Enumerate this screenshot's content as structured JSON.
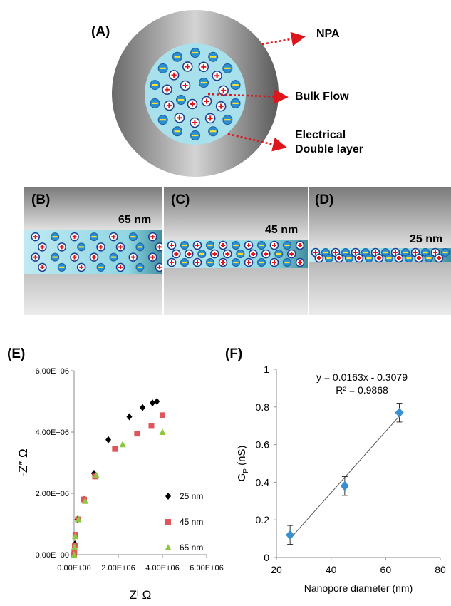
{
  "panelA": {
    "letter": "(A)",
    "labels": {
      "npa": "NPA",
      "bulk": "Bulk Flow",
      "edl_line1": "Electrical",
      "edl_line2": "Double layer"
    },
    "colors": {
      "outer_dark": "#5f5f5f",
      "outer_light": "#d9d9d9",
      "fluid": "#a8e1ec",
      "arrow": "#e0141b"
    }
  },
  "channels": [
    {
      "letter": "(B)",
      "size": "65 nm"
    },
    {
      "letter": "(C)",
      "size": "45 nm"
    },
    {
      "letter": "(D)",
      "size": "25 nm"
    }
  ],
  "chart_data": [
    {
      "panel": "(E)",
      "type": "scatter",
      "xlabel": "Zᴵ Ω",
      "ylabel": "-Z″ Ω",
      "xlim": [
        0,
        6000000
      ],
      "ylim": [
        0,
        6000000
      ],
      "xticks": [
        "0.00E+00",
        "2.00E+06",
        "4.00E+06",
        "6.00E+06"
      ],
      "yticks": [
        "0.00E+00",
        "2.00E+06",
        "4.00E+06",
        "6.00E+06"
      ],
      "legend_position": "right",
      "series": [
        {
          "name": "25 nm",
          "marker": "diamond",
          "color": "#000000",
          "x": [
            0,
            10000,
            20000,
            40000,
            150000,
            450000,
            900000,
            1550000,
            2500000,
            3100000,
            3550000,
            3750000
          ],
          "y": [
            0,
            80000,
            150000,
            350000,
            1150000,
            1800000,
            2650000,
            3750000,
            4500000,
            4800000,
            4950000,
            5000000
          ]
        },
        {
          "name": "45 nm",
          "marker": "square",
          "color": "#e0555a",
          "x": [
            0,
            10000,
            30000,
            60000,
            180000,
            450000,
            950000,
            1850000,
            2850000,
            3500000,
            4000000
          ],
          "y": [
            0,
            100000,
            300000,
            650000,
            1150000,
            1800000,
            2550000,
            3450000,
            3950000,
            4200000,
            4550000
          ]
        },
        {
          "name": "65 nm",
          "marker": "triangle",
          "color": "#8dc63f",
          "x": [
            0,
            20000,
            50000,
            200000,
            500000,
            1000000,
            2200000,
            4000000
          ],
          "y": [
            0,
            250000,
            600000,
            1150000,
            1750000,
            2600000,
            3600000,
            4000000
          ]
        }
      ]
    },
    {
      "panel": "(F)",
      "type": "scatter",
      "xlabel": "Nanopore diameter (nm)",
      "ylabel_main": "G",
      "ylabel_sub": "P",
      "ylabel_unit": " (nS)",
      "xlim": [
        20,
        80
      ],
      "ylim": [
        0,
        1
      ],
      "xticks": [
        "20",
        "40",
        "60",
        "80"
      ],
      "yticks": [
        "0",
        "0.2",
        "0.4",
        "0.6",
        "0.8",
        "1"
      ],
      "grid": false,
      "equation": "y = 0.0163x - 0.3079",
      "r2": "R² = 0.9868",
      "trendline": {
        "slope": 0.0163,
        "intercept": -0.3079
      },
      "marker_color": "#3a8fd0",
      "points": [
        {
          "x": 25,
          "y": 0.12,
          "err": 0.05
        },
        {
          "x": 45,
          "y": 0.38,
          "err": 0.05
        },
        {
          "x": 65,
          "y": 0.77,
          "err": 0.05
        }
      ]
    }
  ]
}
